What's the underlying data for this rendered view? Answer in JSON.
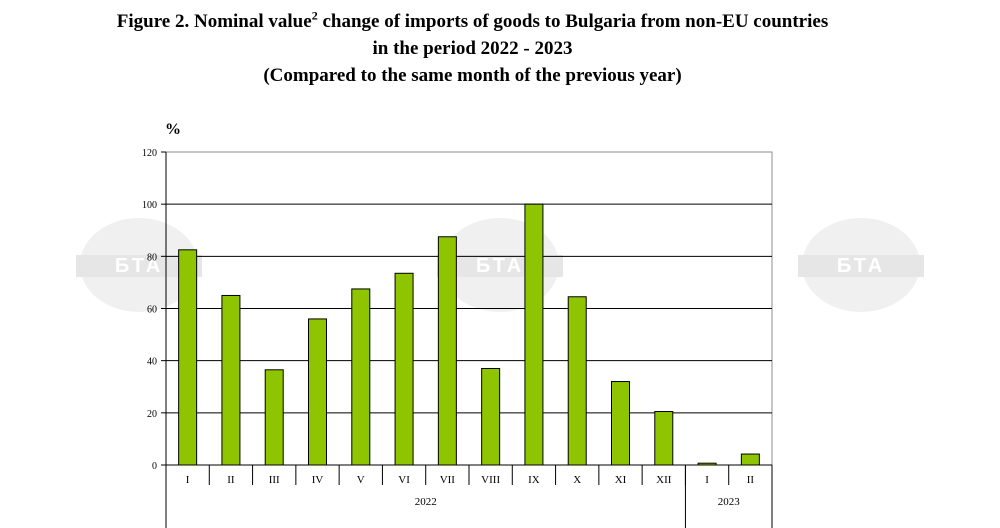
{
  "figure": {
    "title_prefix": "Figure 2. Nominal value",
    "title_sup": "2",
    "title_suffix": " change of imports of goods to Bulgaria from non-EU countries",
    "title_line2": "in the period 2022 - 2023",
    "title_line3": "(Compared to the same month of the previous year)"
  },
  "watermark": {
    "text": "БТА"
  },
  "chart_data": {
    "type": "bar",
    "ylabel": "%",
    "ylim": [
      0,
      120
    ],
    "yticks": [
      0,
      20,
      40,
      60,
      80,
      100,
      120
    ],
    "grid": true,
    "categories": [
      "I",
      "II",
      "III",
      "IV",
      "V",
      "VI",
      "VII",
      "VIII",
      "IX",
      "X",
      "XI",
      "XII",
      "I",
      "II"
    ],
    "values": [
      82.5,
      65,
      36.5,
      56,
      67.5,
      73.5,
      87.5,
      37,
      100,
      64.5,
      32,
      20.5,
      0.7,
      4.2
    ],
    "groups": [
      {
        "label": "2022",
        "count": 12
      },
      {
        "label": "2023",
        "count": 2
      }
    ],
    "bar_color": "#8fc400",
    "bar_edge": "#000000"
  }
}
